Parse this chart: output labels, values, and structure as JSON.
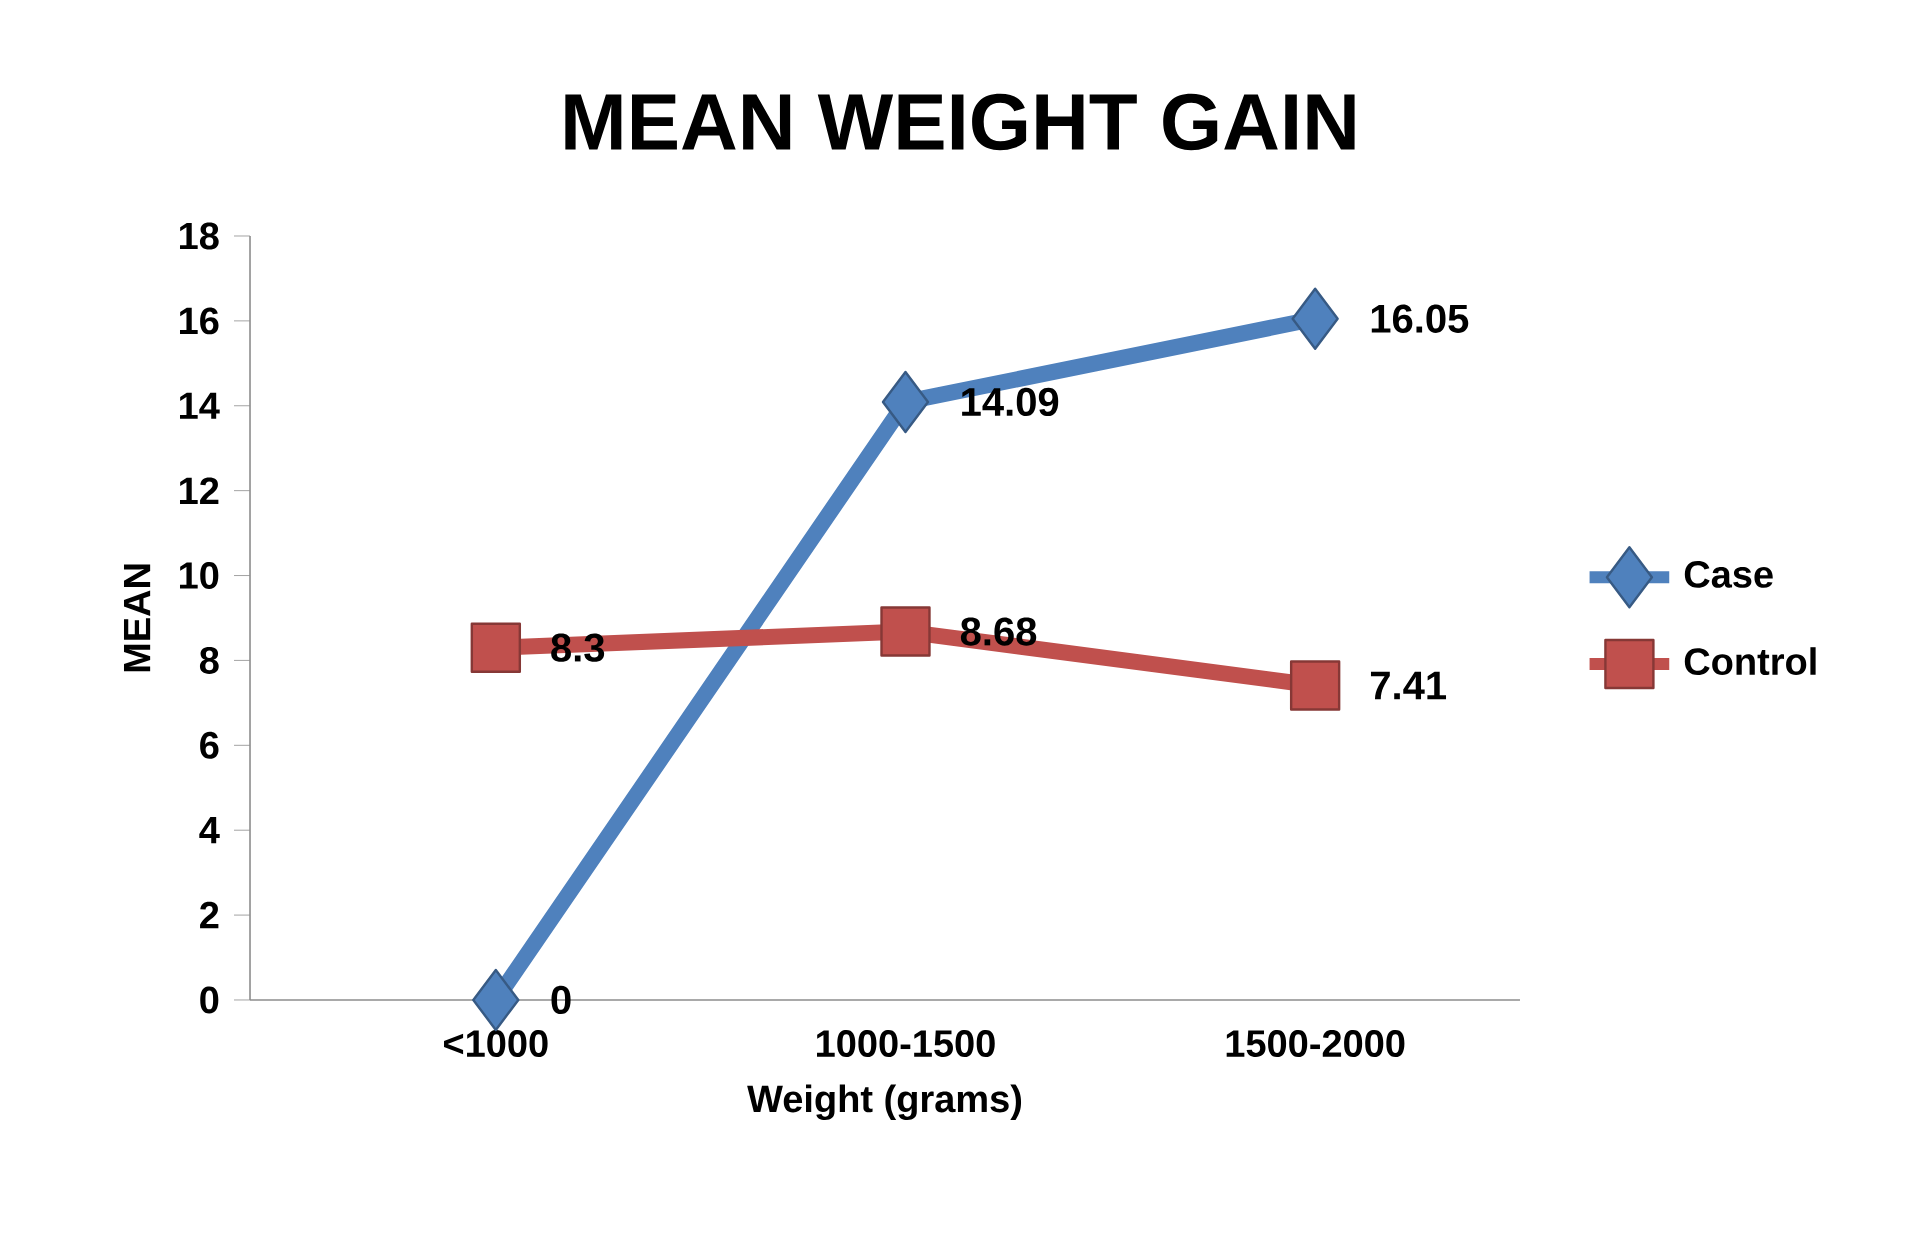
{
  "chart_data": {
    "type": "line",
    "title": "MEAN WEIGHT GAIN",
    "xlabel": "Weight (grams)",
    "ylabel": "MEAN",
    "categories": [
      "<1000",
      "1000-1500",
      "1500-2000"
    ],
    "series": [
      {
        "name": "Case",
        "color": "#4f81bd",
        "marker": "diamond",
        "values": [
          0,
          14.09,
          16.05
        ]
      },
      {
        "name": "Control",
        "color": "#c0504d",
        "marker": "square",
        "values": [
          8.3,
          8.68,
          7.41
        ]
      }
    ],
    "ylim": [
      0,
      18
    ],
    "yticks": [
      0,
      2,
      4,
      6,
      8,
      10,
      12,
      14,
      16,
      18
    ],
    "grid": false,
    "legend": "right",
    "data_labels": true
  }
}
